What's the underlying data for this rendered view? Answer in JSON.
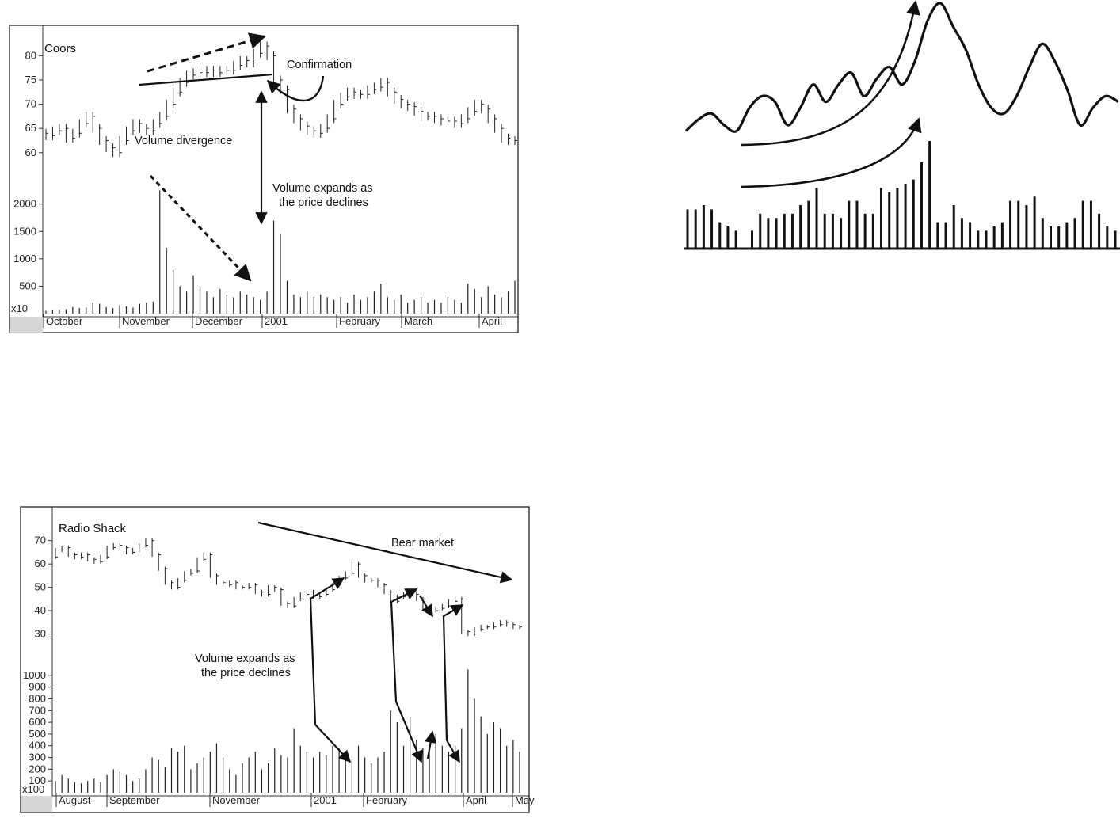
{
  "chart_data": [
    {
      "type": "bar",
      "title": "Coors",
      "volume_multiplier_label": "x10",
      "price_ticks": [
        80,
        75,
        70,
        65,
        60
      ],
      "volume_ticks": [
        2000,
        1500,
        1000,
        500
      ],
      "ylim_price": [
        58,
        83
      ],
      "ylim_volume": [
        0,
        2400
      ],
      "month_labels": [
        "October",
        "November",
        "December",
        "2001",
        "February",
        "March",
        "April"
      ],
      "annotations": {
        "confirmation": "Confirmation",
        "divergence": "Volume divergence",
        "expands_line1": "Volume expands as",
        "expands_line2": "the price declines"
      },
      "price_trace": [
        64,
        63.5,
        64.5,
        65,
        63,
        64,
        66,
        67.5,
        65,
        62.5,
        61,
        60,
        62.5,
        64.5,
        66,
        65,
        64.5,
        66,
        67.5,
        70,
        72.5,
        74.5,
        76,
        76.5,
        76.5,
        77,
        76.5,
        77,
        77,
        78,
        79,
        78.5,
        80.5,
        82,
        80,
        75,
        73,
        69,
        67,
        65.5,
        64.5,
        64,
        65,
        67,
        70,
        71.5,
        72.5,
        72,
        72,
        73,
        73.5,
        74.5,
        72.5,
        71,
        70,
        69.5,
        68.5,
        67.5,
        67.5,
        67,
        66.5,
        66.5,
        66,
        67,
        68.5,
        70,
        69,
        67,
        65,
        63,
        62.5
      ],
      "volume_trace": [
        50,
        60,
        70,
        80,
        120,
        100,
        110,
        200,
        180,
        120,
        100,
        150,
        130,
        110,
        180,
        200,
        220,
        2250,
        1200,
        800,
        500,
        400,
        700,
        500,
        400,
        300,
        450,
        350,
        300,
        400,
        350,
        300,
        250,
        400,
        1700,
        1450,
        600,
        350,
        300,
        400,
        300,
        350,
        300,
        250,
        300,
        200,
        350,
        250,
        300,
        400,
        550,
        300,
        250,
        350,
        200,
        250,
        300,
        200,
        250,
        200,
        300,
        250,
        200,
        550,
        450,
        300,
        500,
        350,
        300,
        400,
        600
      ]
    },
    {
      "type": "bar",
      "title": "Radio Shack",
      "volume_multiplier_label": "x100",
      "price_ticks": [
        70,
        60,
        50,
        40,
        30
      ],
      "volume_ticks": [
        1000,
        900,
        800,
        700,
        600,
        500,
        400,
        300,
        200,
        100
      ],
      "ylim_price": [
        20,
        75
      ],
      "ylim_volume": [
        0,
        1100
      ],
      "month_labels": [
        "August",
        "September",
        "November",
        "2001",
        "February",
        "April",
        "May"
      ],
      "annotations": {
        "bear_market": "Bear market",
        "expands_line1": "Volume expands as",
        "expands_line2": "the price declines"
      },
      "price_trace": [
        63,
        66,
        67,
        64,
        63,
        64,
        62,
        61,
        63,
        67,
        68,
        67,
        65,
        66,
        68,
        70,
        64,
        58,
        52,
        50,
        53,
        56,
        57,
        62,
        64,
        55,
        52,
        51,
        52,
        50,
        50,
        51,
        48,
        47,
        50,
        49,
        43,
        42,
        45,
        47,
        48,
        46,
        47,
        49,
        51,
        54,
        56,
        60,
        55,
        53,
        53,
        51,
        48,
        44,
        46,
        47,
        47,
        45,
        41,
        40,
        41,
        42,
        44,
        45,
        31,
        30,
        32,
        33,
        33,
        34,
        35,
        34,
        33
      ],
      "volume_trace": [
        100,
        150,
        120,
        90,
        80,
        100,
        120,
        90,
        150,
        200,
        180,
        150,
        100,
        120,
        200,
        300,
        280,
        220,
        380,
        350,
        400,
        200,
        250,
        300,
        350,
        420,
        300,
        200,
        150,
        250,
        300,
        350,
        200,
        250,
        380,
        320,
        300,
        550,
        400,
        350,
        300,
        350,
        320,
        400,
        380,
        300,
        280,
        400,
        300,
        250,
        300,
        350,
        700,
        600,
        400,
        650,
        450,
        380,
        350,
        500,
        400,
        350,
        400,
        550,
        1050,
        800,
        650,
        500,
        600,
        550,
        400,
        450,
        350
      ]
    },
    {
      "type": "line",
      "title": "",
      "price_trace": [
        2,
        4,
        5,
        3,
        2,
        6,
        8,
        7,
        3,
        6,
        10,
        7,
        10,
        12,
        8,
        11,
        13,
        10,
        14,
        21,
        24,
        20,
        16,
        10,
        6,
        5,
        8,
        13,
        17,
        14,
        9,
        3,
        6,
        8,
        7
      ],
      "volume_bars": [
        9,
        9,
        10,
        9,
        6,
        5,
        4,
        0,
        4,
        8,
        7,
        7,
        8,
        8,
        10,
        11,
        14,
        8,
        8,
        7,
        11,
        11,
        8,
        8,
        14,
        13,
        14,
        15,
        16,
        20,
        25,
        6,
        6,
        10,
        7,
        6,
        4,
        4,
        5,
        6,
        11,
        11,
        10,
        12,
        7,
        5,
        5,
        6,
        7,
        11,
        11,
        8,
        5,
        4
      ]
    }
  ]
}
